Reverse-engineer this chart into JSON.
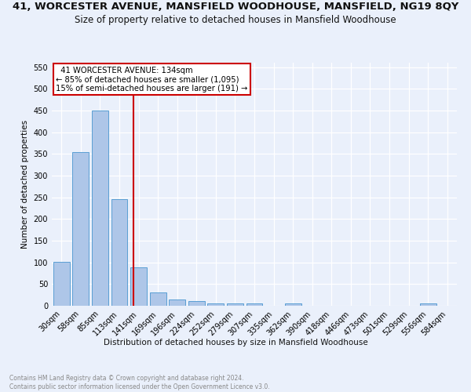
{
  "title": "41, WORCESTER AVENUE, MANSFIELD WOODHOUSE, MANSFIELD, NG19 8QY",
  "subtitle": "Size of property relative to detached houses in Mansfield Woodhouse",
  "xlabel": "Distribution of detached houses by size in Mansfield Woodhouse",
  "ylabel": "Number of detached properties",
  "footnote": "Contains HM Land Registry data © Crown copyright and database right 2024.\nContains public sector information licensed under the Open Government Licence v3.0.",
  "categories": [
    "30sqm",
    "58sqm",
    "85sqm",
    "113sqm",
    "141sqm",
    "169sqm",
    "196sqm",
    "224sqm",
    "252sqm",
    "279sqm",
    "307sqm",
    "335sqm",
    "362sqm",
    "390sqm",
    "418sqm",
    "446sqm",
    "473sqm",
    "501sqm",
    "529sqm",
    "556sqm",
    "584sqm"
  ],
  "values": [
    102,
    354,
    450,
    245,
    88,
    30,
    15,
    10,
    6,
    5,
    5,
    0,
    6,
    0,
    0,
    0,
    0,
    0,
    0,
    6,
    0
  ],
  "bar_color": "#aec6e8",
  "bar_edge_color": "#5a9fd4",
  "vline_color": "#cc0000",
  "vline_x": 3.75,
  "annotation_text": "  41 WORCESTER AVENUE: 134sqm\n← 85% of detached houses are smaller (1,095)\n15% of semi-detached houses are larger (191) →",
  "annotation_box_color": "#ffffff",
  "annotation_box_edge": "#cc0000",
  "ylim": [
    0,
    560
  ],
  "yticks": [
    0,
    50,
    100,
    150,
    200,
    250,
    300,
    350,
    400,
    450,
    500,
    550
  ],
  "background_color": "#eaf0fb",
  "grid_color": "#ffffff",
  "title_fontsize": 9.5,
  "subtitle_fontsize": 8.5,
  "axis_label_fontsize": 7.5,
  "tick_fontsize": 7,
  "footnote_fontsize": 5.5
}
